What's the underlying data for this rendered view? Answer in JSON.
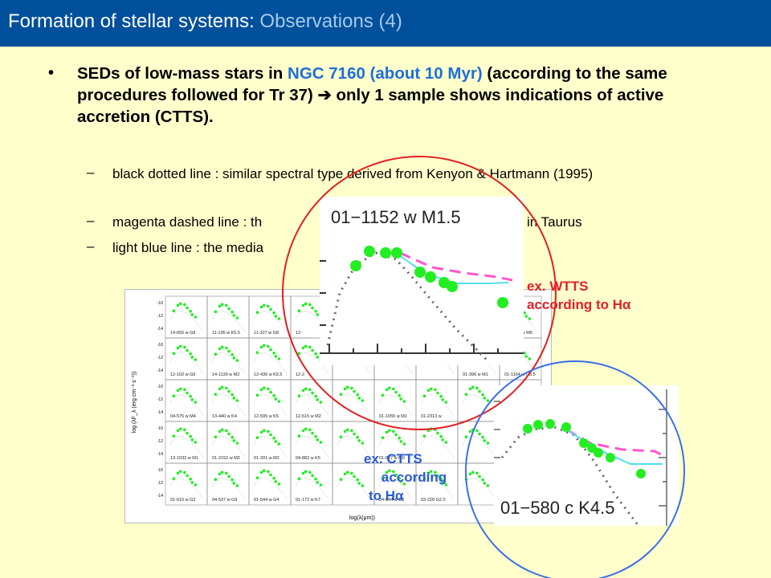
{
  "slide": {
    "title_main": "Formation of stellar systems: ",
    "title_sub": "Observations (4)",
    "bullet": {
      "part1": "SEDs of low-mass stars in ",
      "highlight": "NGC 7160 (about 10 Myr)",
      "part2": " (according to the same procedures followed for Tr 37) ",
      "arrow": "➔",
      "part3": " only 1 sample shows indications of active accretion (CTTS)."
    },
    "sub_bullets": [
      {
        "dash": "–",
        "text": "black dotted line : similar spectral type derived from Kenyon & Hartmann (1995)"
      },
      {
        "dash": "–",
        "text": "magenta dashed line : th",
        "text_end": "in Taurus"
      },
      {
        "dash": "–",
        "text": "light blue line : the media"
      }
    ],
    "notes": {
      "wtts": [
        "ex. WTTS",
        "according to Hα"
      ],
      "ctts": [
        "ex. CTTS",
        "according",
        "to Hα"
      ]
    },
    "colors": {
      "title_bar": "#00509c",
      "background": "#ffffcc",
      "highlight": "#1d6fd9",
      "red_circle": "#e02020",
      "blue_circle": "#3a6ee8",
      "sed_points": "#22ee22"
    }
  },
  "figure": {
    "ylabel": "log (λF_λ (erg cm⁻² s⁻¹))",
    "xlabel": "log(λ(μm))",
    "panels": [
      "14-655 w G8",
      "11-195 w K5.5",
      "11-327 w G8",
      "12-",
      "",
      "",
      "",
      "",
      "01-1275 w M0",
      "12-102 w G6",
      "14-1139 w M2",
      "12-436 w K5.5",
      "12-2",
      "",
      "",
      "",
      "01-396 w M1",
      "01-1164 w G5.5",
      "04-575 w M4",
      "13-440 w K4",
      "12-595 w K5",
      "12-515 w M2",
      "",
      "01-1055 w M1",
      "01-2313 w",
      "",
      "",
      "13-1033 w M1",
      "01-2152 w M2",
      "01-201 w M2",
      "04-882 w K5",
      "",
      "01-827 w M0",
      "",
      "",
      "",
      "01-615 w G2",
      "04-537 w G9",
      "01-544 w G4",
      "01-172 w K7",
      "",
      "04-544 w G2",
      "03-228 G2.0",
      "",
      ""
    ],
    "zoom_wtts": {
      "label": "01−1152  w  M1.5"
    },
    "zoom_ctts": {
      "label": "01−580  c  K4.5"
    }
  }
}
